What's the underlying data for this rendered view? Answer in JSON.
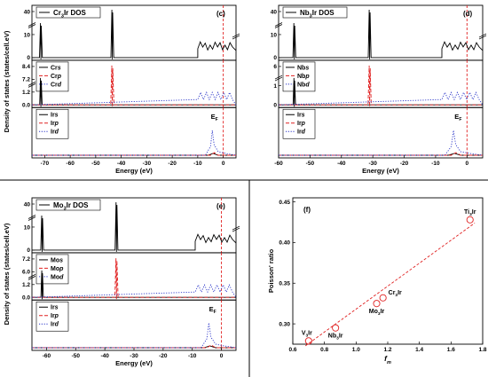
{
  "colors": {
    "s": "#000000",
    "p": "#e02020",
    "d": "#2a35c8",
    "fermi": "#e02020",
    "fit": "#e02020",
    "marker": "#e02020"
  },
  "chart_data": [
    {
      "type": "line",
      "panel": "(c)",
      "compound_main": "Cr",
      "compound_sub": "3",
      "compound_tail": "Ir DOS",
      "xlabel": "Energy (eV)",
      "ylabel": "Density of states (states/cell.eV)",
      "xlim": [
        -75,
        5
      ],
      "xticks": [
        "-70",
        "-60",
        "-50",
        "-40",
        "-30",
        "-20",
        "-10",
        "0"
      ],
      "fermi_label": "E",
      "fermi_sub": "F",
      "subplots": [
        {
          "name": "total",
          "yticks": [
            "0",
            "10",
            "40"
          ],
          "legend": [
            {
              "el": "",
              "orb": "",
              "style": "s"
            }
          ]
        },
        {
          "name": "Cr",
          "yticks": [
            "0.0",
            "1.2",
            "7.2",
            "8.4"
          ],
          "legend": [
            {
              "el": "Cr",
              "orb": "s",
              "style": "s"
            },
            {
              "el": "Cr",
              "orb": "p",
              "style": "p"
            },
            {
              "el": "Cr",
              "orb": "d",
              "style": "d"
            }
          ]
        },
        {
          "name": "Ir",
          "yticks": [],
          "legend": [
            {
              "el": "Ir",
              "orb": "s",
              "style": "s"
            },
            {
              "el": "Ir",
              "orb": "p",
              "style": "p"
            },
            {
              "el": "Ir",
              "orb": "d",
              "style": "d"
            }
          ]
        }
      ],
      "peaks": {
        "s": -71.5,
        "p": -43.5,
        "dmin": -10
      }
    },
    {
      "type": "line",
      "panel": "(d)",
      "compound_main": "Nb",
      "compound_sub": "3",
      "compound_tail": "Ir DOS",
      "xlabel": "Energy (eV)",
      "ylabel": "",
      "xlim": [
        -60,
        5
      ],
      "xticks": [
        "-60",
        "-50",
        "-40",
        "-30",
        "-20",
        "-10",
        "0"
      ],
      "fermi_label": "E",
      "fermi_sub": "F",
      "subplots": [
        {
          "name": "total",
          "yticks": [
            "0",
            "10",
            "40"
          ],
          "legend": [
            {
              "el": "",
              "orb": "",
              "style": "s"
            }
          ]
        },
        {
          "name": "Nb",
          "yticks": [
            "0",
            "1",
            "6"
          ],
          "legend": [
            {
              "el": "Nb",
              "orb": "s",
              "style": "s"
            },
            {
              "el": "Nb",
              "orb": "p",
              "style": "p"
            },
            {
              "el": "Nb",
              "orb": "d",
              "style": "d"
            }
          ]
        },
        {
          "name": "Ir",
          "yticks": [],
          "legend": [
            {
              "el": "Ir",
              "orb": "s",
              "style": "s"
            },
            {
              "el": "Ir",
              "orb": "p",
              "style": "p"
            },
            {
              "el": "Ir",
              "orb": "d",
              "style": "d"
            }
          ]
        }
      ],
      "peaks": {
        "s": -55,
        "p": -31,
        "dmin": -8
      }
    },
    {
      "type": "line",
      "panel": "(e)",
      "compound_main": "Mo",
      "compound_sub": "3",
      "compound_tail": "Ir DOS",
      "xlabel": "Energy (eV)",
      "ylabel": "Density of states (states/cell.eV)",
      "xlim": [
        -65,
        5
      ],
      "xticks": [
        "-60",
        "-50",
        "-40",
        "-30",
        "-20",
        "-10",
        "0"
      ],
      "fermi_label": "E",
      "fermi_sub": "F",
      "subplots": [
        {
          "name": "total",
          "yticks": [
            "0",
            "10",
            "40"
          ],
          "legend": [
            {
              "el": "",
              "orb": "",
              "style": "s"
            }
          ]
        },
        {
          "name": "Mo",
          "yticks": [
            "0.0",
            "1.2",
            "6.0",
            "7.2"
          ],
          "legend": [
            {
              "el": "Mo",
              "orb": "s",
              "style": "s"
            },
            {
              "el": "Mo",
              "orb": "p",
              "style": "p"
            },
            {
              "el": "Mo",
              "orb": "d",
              "style": "d"
            }
          ]
        },
        {
          "name": "Ir",
          "yticks": [],
          "legend": [
            {
              "el": "Ir",
              "orb": "s",
              "style": "s"
            },
            {
              "el": "Ir",
              "orb": "p",
              "style": "p"
            },
            {
              "el": "Ir",
              "orb": "d",
              "style": "d"
            }
          ]
        }
      ],
      "peaks": {
        "s": -61.5,
        "p": -36,
        "dmin": -9
      }
    },
    {
      "type": "scatter",
      "panel": "(f)",
      "xlabel_main": "f",
      "xlabel_sub": "m",
      "ylabel": "Poisson' ratio",
      "xlim": [
        0.6,
        1.8
      ],
      "ylim": [
        0.275,
        0.455
      ],
      "xticks": [
        0.6,
        0.8,
        1.0,
        1.2,
        1.4,
        1.6,
        1.8
      ],
      "yticks": [
        0.3,
        0.35,
        0.4,
        0.45
      ],
      "xtick_labels": [
        "0.6",
        "0.8",
        "1.0",
        "1.2",
        "1.4",
        "1.6",
        "1.8"
      ],
      "ytick_labels": [
        "0.30",
        "0.35",
        "0.40",
        "0.45"
      ],
      "points": [
        {
          "main": "V",
          "sub": "3",
          "tail": "Ir",
          "x": 0.7,
          "y": 0.279,
          "pos": "above"
        },
        {
          "main": "Nb",
          "sub": "3",
          "tail": "Ir",
          "x": 0.87,
          "y": 0.295,
          "pos": "below"
        },
        {
          "main": "Mo",
          "sub": "3",
          "tail": "Ir",
          "x": 1.13,
          "y": 0.325,
          "pos": "below"
        },
        {
          "main": "Cr",
          "sub": "3",
          "tail": "Ir",
          "x": 1.17,
          "y": 0.332,
          "pos": "right"
        },
        {
          "main": "Ti",
          "sub": "3",
          "tail": "Ir",
          "x": 1.72,
          "y": 0.428,
          "pos": "above"
        }
      ],
      "fit": {
        "x": [
          0.68,
          1.75
        ],
        "y": [
          0.273,
          0.424
        ]
      }
    }
  ]
}
